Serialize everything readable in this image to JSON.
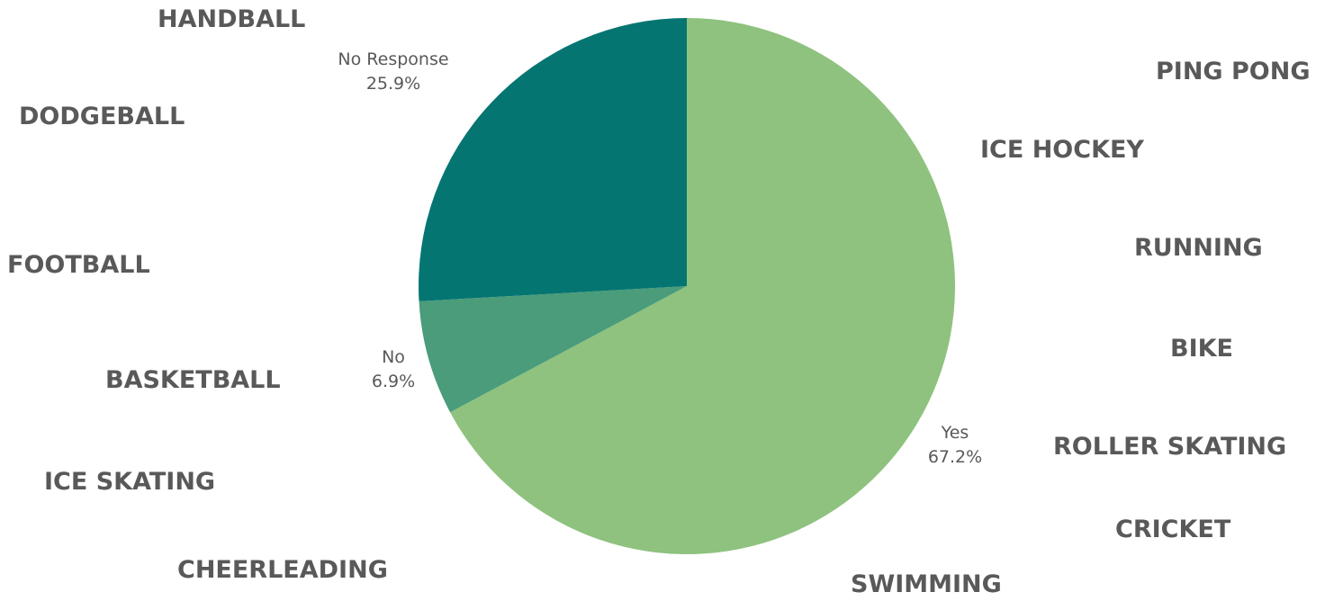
{
  "chart_data": {
    "type": "pie",
    "slices": [
      {
        "label": "Yes",
        "value": 67.2,
        "display": "67.2%",
        "color": "#8ec27e"
      },
      {
        "label": "No",
        "value": 6.9,
        "display": "6.9%",
        "color": "#4a9c7a"
      },
      {
        "label": "No Response",
        "value": 25.9,
        "display": "25.9%",
        "color": "#057572"
      }
    ],
    "start_angle_deg": 0,
    "direction": "clockwise",
    "title": "",
    "legend": "none"
  },
  "sports": [
    "HANDBALL",
    "DODGEBALL",
    "FOOTBALL",
    "BASKETBALL",
    "ICE SKATING",
    "CHEERLEADING",
    "PING PONG",
    "ICE HOCKEY",
    "RUNNING",
    "BIKE",
    "ROLLER SKATING",
    "CRICKET",
    "SWIMMING"
  ],
  "colors": {
    "sport_text": "#595959",
    "label_text": "#595959"
  }
}
